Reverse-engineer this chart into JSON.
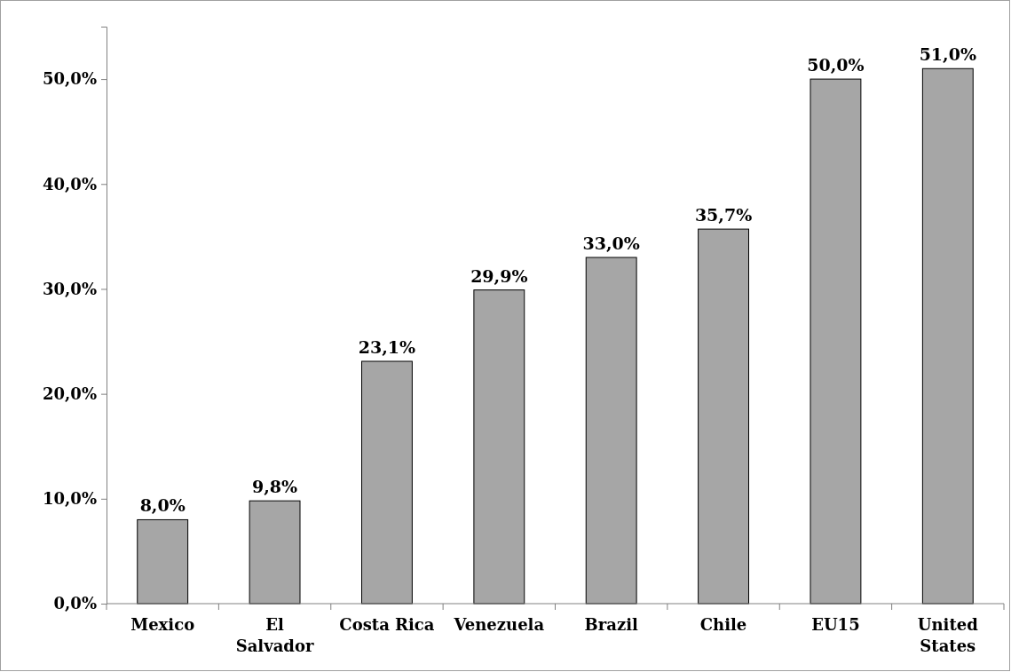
{
  "chart_data": {
    "type": "bar",
    "categories": [
      "Mexico",
      "El Salvador",
      "Costa Rica",
      "Venezuela",
      "Brazil",
      "Chile",
      "EU15",
      "United States"
    ],
    "values": [
      8.0,
      9.8,
      23.1,
      29.9,
      33.0,
      35.7,
      50.0,
      51.0
    ],
    "value_labels": [
      "8,0%",
      "9,8%",
      "23,1%",
      "29,9%",
      "33,0%",
      "35,7%",
      "50,0%",
      "51,0%"
    ],
    "color": "#a6a6a6",
    "ylim": [
      0,
      55
    ],
    "yticks": [
      {
        "value": 0,
        "label": "0,0%"
      },
      {
        "value": 10,
        "label": "10,0%"
      },
      {
        "value": 20,
        "label": "20,0%"
      },
      {
        "value": 30,
        "label": "30,0%"
      },
      {
        "value": 40,
        "label": "40,0%"
      },
      {
        "value": 50,
        "label": "50,0%"
      }
    ],
    "grid": false
  }
}
